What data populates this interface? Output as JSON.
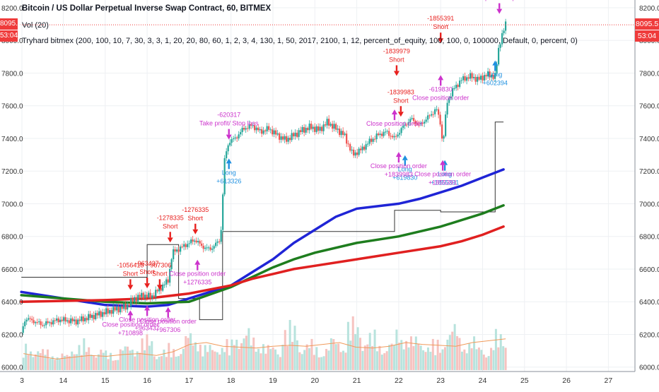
{
  "header": {
    "title": "Bitcoin / US Dollar Perpetual Inverse Swap Contract, 60, BITMEX",
    "volume_label": "Vol (20)",
    "strategy_label": "Tryhard bitmex (200, 100, 10, 7, 30, 3, 3, 1, 20, 20, 80, 60, 1, 2, 3, 4, 130, 1, 50, 2017, 2100, 1, 12, percent_of_equity, 100, 100, 0, 100000, Default, 0, percent, 0)"
  },
  "price_scale": {
    "last_price": "8095.5",
    "countdown": "53:04"
  },
  "colors": {
    "up": "#26a69a",
    "down": "#ef5350",
    "ma_blue": "#1f24d6",
    "ma_green": "#1e7d1e",
    "ma_red": "#e02020",
    "vol_ma": "#f09a5a",
    "signal_short": "#e8201e",
    "signal_long": "#1e90e0",
    "close_order": "#cc33cc",
    "step_line": "#333333",
    "grid": "#eef0f3"
  },
  "chart_data": {
    "type": "candlestick",
    "title": "Bitcoin / US Dollar Perpetual Inverse Swap Contract, 60, BITMEX",
    "x_tick_labels": [
      "3",
      "14",
      "15",
      "16",
      "17",
      "18",
      "19",
      "20",
      "21",
      "22",
      "23",
      "24",
      "25",
      "26",
      "27"
    ],
    "x_ticks_day": [
      3,
      14,
      15,
      16,
      17,
      18,
      19,
      20,
      21,
      22,
      23,
      24,
      25,
      26,
      27
    ],
    "x_axis_gap": "date break between 3 and 14",
    "y_tick_labels": [
      "6000.0",
      "6200.0",
      "6400.0",
      "6600.0",
      "6800.0",
      "7000.0",
      "7200.0",
      "7400.0",
      "7600.0",
      "7800.0",
      "8000.0",
      "8200.0"
    ],
    "y_ticks": [
      6000,
      6200,
      6400,
      6600,
      6800,
      7000,
      7200,
      7400,
      7600,
      7800,
      8000,
      8200
    ],
    "ylim": [
      5990,
      8230
    ],
    "price_path": [
      [
        13.0,
        6210
      ],
      [
        13.1,
        6300
      ],
      [
        13.5,
        6260
      ],
      [
        13.9,
        6290
      ],
      [
        14.3,
        6280
      ],
      [
        14.8,
        6320
      ],
      [
        15.2,
        6350
      ],
      [
        15.5,
        6370
      ],
      [
        15.7,
        6420
      ],
      [
        15.9,
        6440
      ],
      [
        16.1,
        6430
      ],
      [
        16.3,
        6480
      ],
      [
        16.5,
        6530
      ],
      [
        16.6,
        6700
      ],
      [
        16.8,
        6730
      ],
      [
        17.0,
        6760
      ],
      [
        17.15,
        6780
      ],
      [
        17.3,
        6740
      ],
      [
        17.5,
        6720
      ],
      [
        17.75,
        6780
      ],
      [
        17.85,
        7280
      ],
      [
        17.95,
        7380
      ],
      [
        18.1,
        7400
      ],
      [
        18.3,
        7460
      ],
      [
        18.5,
        7480
      ],
      [
        18.7,
        7440
      ],
      [
        18.9,
        7460
      ],
      [
        19.1,
        7420
      ],
      [
        19.3,
        7390
      ],
      [
        19.5,
        7420
      ],
      [
        19.7,
        7450
      ],
      [
        19.9,
        7470
      ],
      [
        20.1,
        7450
      ],
      [
        20.3,
        7500
      ],
      [
        20.5,
        7460
      ],
      [
        20.7,
        7420
      ],
      [
        20.9,
        7300
      ],
      [
        21.1,
        7330
      ],
      [
        21.3,
        7380
      ],
      [
        21.5,
        7420
      ],
      [
        21.7,
        7440
      ],
      [
        21.9,
        7400
      ],
      [
        22.1,
        7470
      ],
      [
        22.3,
        7520
      ],
      [
        22.5,
        7480
      ],
      [
        22.7,
        7530
      ],
      [
        22.9,
        7580
      ],
      [
        23.0,
        7490
      ],
      [
        23.05,
        7350
      ],
      [
        23.15,
        7620
      ],
      [
        23.3,
        7700
      ],
      [
        23.5,
        7760
      ],
      [
        23.7,
        7780
      ],
      [
        23.9,
        7760
      ],
      [
        24.1,
        7790
      ],
      [
        24.3,
        7780
      ],
      [
        24.4,
        7980
      ],
      [
        24.5,
        8060
      ],
      [
        24.55,
        8095.5
      ]
    ],
    "series": [
      {
        "name": "MA blue",
        "style": "line",
        "points": [
          [
            13.0,
            6460
          ],
          [
            15.0,
            6380
          ],
          [
            16.0,
            6370
          ],
          [
            16.5,
            6380
          ],
          [
            17.0,
            6420
          ],
          [
            17.5,
            6460
          ],
          [
            18.0,
            6500
          ],
          [
            18.5,
            6580
          ],
          [
            19.0,
            6660
          ],
          [
            19.5,
            6760
          ],
          [
            20.0,
            6840
          ],
          [
            20.5,
            6920
          ],
          [
            21.0,
            6970
          ],
          [
            22.0,
            7000
          ],
          [
            22.5,
            7030
          ],
          [
            23.0,
            7070
          ],
          [
            23.5,
            7110
          ],
          [
            24.0,
            7160
          ],
          [
            24.5,
            7210
          ]
        ]
      },
      {
        "name": "MA green",
        "style": "line",
        "points": [
          [
            13.0,
            6440
          ],
          [
            15.0,
            6400
          ],
          [
            16.0,
            6390
          ],
          [
            17.0,
            6400
          ],
          [
            18.0,
            6490
          ],
          [
            18.5,
            6550
          ],
          [
            19.0,
            6610
          ],
          [
            19.5,
            6660
          ],
          [
            20.0,
            6700
          ],
          [
            21.0,
            6760
          ],
          [
            22.0,
            6800
          ],
          [
            23.0,
            6860
          ],
          [
            23.5,
            6900
          ],
          [
            24.0,
            6940
          ],
          [
            24.5,
            6990
          ]
        ]
      },
      {
        "name": "MA red",
        "style": "line",
        "points": [
          [
            13.0,
            6400
          ],
          [
            15.0,
            6410
          ],
          [
            16.0,
            6420
          ],
          [
            17.0,
            6450
          ],
          [
            18.0,
            6500
          ],
          [
            18.5,
            6540
          ],
          [
            19.0,
            6570
          ],
          [
            19.5,
            6600
          ],
          [
            20.0,
            6620
          ],
          [
            21.0,
            6660
          ],
          [
            22.0,
            6700
          ],
          [
            23.0,
            6740
          ],
          [
            23.5,
            6770
          ],
          [
            24.0,
            6810
          ],
          [
            24.5,
            6860
          ]
        ]
      },
      {
        "name": "Channel step",
        "style": "step",
        "points": [
          [
            13.0,
            6550
          ],
          [
            16.0,
            6550
          ],
          [
            16.0,
            6750
          ],
          [
            16.75,
            6750
          ],
          [
            16.75,
            6420
          ],
          [
            17.25,
            6420
          ],
          [
            17.25,
            6290
          ],
          [
            17.8,
            6290
          ],
          [
            17.8,
            6830
          ],
          [
            21.9,
            6830
          ],
          [
            21.9,
            6960
          ],
          [
            23.0,
            6960
          ],
          [
            23.0,
            6950
          ],
          [
            24.3,
            6950
          ],
          [
            24.3,
            7500
          ],
          [
            24.5,
            7500
          ]
        ]
      }
    ],
    "volume": {
      "ma_name": "Vol (20)",
      "bar_samples": [
        0.3,
        0.25,
        0.2,
        0.35,
        0.28,
        0.22,
        0.3,
        0.4,
        0.25,
        0.3,
        0.45,
        0.3,
        0.35,
        0.5,
        0.4,
        0.3,
        0.55,
        0.35,
        0.3,
        0.4,
        0.6,
        0.45,
        0.35,
        0.5,
        0.4,
        0.35,
        0.55,
        0.4,
        0.3,
        0.45
      ],
      "ma_samples": [
        0.18,
        0.15,
        0.12,
        0.14,
        0.16,
        0.15,
        0.17,
        0.18,
        0.16,
        0.2,
        0.28,
        0.3,
        0.26,
        0.25,
        0.24,
        0.26,
        0.27,
        0.26,
        0.28,
        0.3,
        0.25,
        0.24,
        0.26,
        0.3,
        0.28,
        0.27,
        0.26,
        0.3,
        0.32,
        0.34
      ]
    },
    "signals": [
      {
        "kind": "short",
        "day": 15.6,
        "price": 6490,
        "labels": [
          "-1056418",
          "Short"
        ]
      },
      {
        "kind": "short",
        "day": 16.0,
        "price": 6500,
        "labels": [
          "-963437",
          "Short"
        ]
      },
      {
        "kind": "short",
        "day": 16.3,
        "price": 6490,
        "labels": [
          "-967306",
          "Short"
        ]
      },
      {
        "kind": "short",
        "day": 16.55,
        "price": 6780,
        "labels": [
          "-1278335",
          "Short"
        ]
      },
      {
        "kind": "short",
        "day": 17.15,
        "price": 6830,
        "labels": [
          "-1276335",
          "Short"
        ]
      },
      {
        "kind": "short",
        "day": 21.95,
        "price": 7800,
        "labels": [
          "-1839979",
          "Short"
        ]
      },
      {
        "kind": "short",
        "day": 22.05,
        "price": 7550,
        "labels": [
          "-1839983",
          "Short"
        ]
      },
      {
        "kind": "short",
        "day": 23.0,
        "price": 8000,
        "labels": [
          "-1855391",
          "Short"
        ]
      },
      {
        "kind": "long",
        "day": 17.95,
        "price": 7260,
        "labels": [
          "Long",
          "+613326"
        ]
      },
      {
        "kind": "long",
        "day": 22.15,
        "price": 7280,
        "labels": [
          "Long",
          "+619830"
        ]
      },
      {
        "kind": "long",
        "day": 23.1,
        "price": 7250,
        "labels": [
          "Long",
          "+1855391"
        ]
      },
      {
        "kind": "long",
        "day": 24.3,
        "price": 7860,
        "labels": [
          "Long",
          "+602394"
        ]
      },
      {
        "kind": "close",
        "day": 15.6,
        "price": 6330,
        "labels": [
          "Close position order",
          "+710898"
        ]
      },
      {
        "kind": "close",
        "day": 16.0,
        "price": 6360,
        "labels": [
          "Close position order",
          "+963437"
        ]
      },
      {
        "kind": "close",
        "day": 16.5,
        "price": 6350,
        "labels": [
          "Close position order",
          "+967306"
        ]
      },
      {
        "kind": "close",
        "day": 17.2,
        "price": 6640,
        "labels": [
          "Close position order",
          "+1276335"
        ]
      },
      {
        "kind": "close",
        "day": 21.9,
        "price": 7560,
        "labels": [
          "Close position order"
        ]
      },
      {
        "kind": "close",
        "day": 22.0,
        "price": 7300,
        "labels": [
          "Close position order",
          "+1839983"
        ]
      },
      {
        "kind": "close",
        "day": 23.0,
        "price": 7770,
        "labels": [
          "-619830",
          "Close position order"
        ]
      },
      {
        "kind": "close",
        "day": 23.05,
        "price": 7250,
        "labels": [
          "Close position order",
          "+1855391"
        ]
      },
      {
        "kind": "takeprofit",
        "day": 17.95,
        "price": 7410,
        "labels": [
          "-620317",
          "Take profit/ Stop loss"
        ]
      },
      {
        "kind": "takeprofit",
        "day": 24.4,
        "price": 8180,
        "labels": [
          "Take profit/ Stop loss"
        ]
      }
    ]
  }
}
